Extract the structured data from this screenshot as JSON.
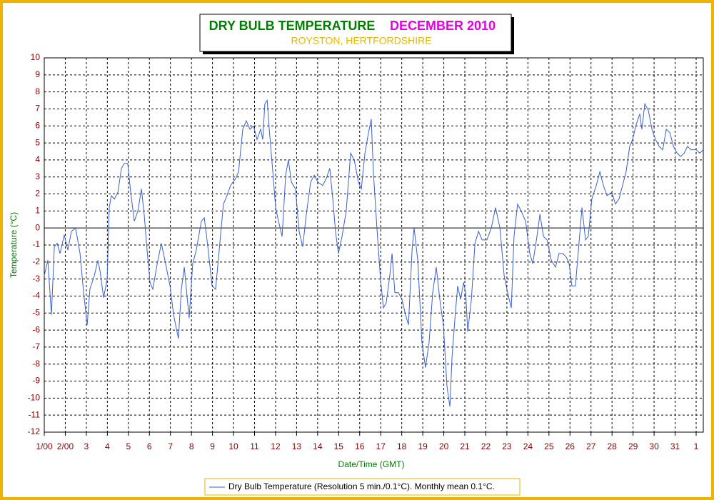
{
  "chart_data": {
    "type": "line",
    "title": "DRY BULB TEMPERATURE",
    "title_period": "DECEMBER 2010",
    "subtitle": "ROYSTON, HERTFORDSHIRE",
    "xlabel": "Date/Time (GMT)",
    "ylabel": "Temperature (°C)",
    "xlim": [
      1,
      32.34
    ],
    "ylim": [
      -12,
      10
    ],
    "xticks": [
      {
        "value": 1,
        "label": "1/00"
      },
      {
        "value": 2,
        "label": "2/00"
      },
      3,
      4,
      5,
      6,
      7,
      8,
      9,
      10,
      11,
      12,
      13,
      14,
      15,
      16,
      17,
      18,
      19,
      20,
      21,
      22,
      23,
      24,
      25,
      26,
      27,
      28,
      29,
      30,
      31,
      {
        "value": 32,
        "label": "1"
      }
    ],
    "yticks": [
      -12,
      -11,
      -10,
      -9,
      -8,
      -7,
      -6,
      -5,
      -4,
      -3,
      -2,
      -1,
      0,
      1,
      2,
      3,
      4,
      5,
      6,
      7,
      8,
      9,
      10
    ],
    "grid": true,
    "x": [
      1.0,
      1.17,
      1.34,
      1.48,
      1.61,
      1.75,
      1.95,
      2.12,
      2.29,
      2.49,
      2.7,
      2.87,
      3.04,
      3.17,
      3.38,
      3.55,
      3.65,
      3.82,
      3.99,
      4.09,
      4.19,
      4.33,
      4.5,
      4.67,
      4.8,
      4.97,
      5.11,
      5.28,
      5.45,
      5.62,
      5.75,
      5.89,
      6.03,
      6.16,
      6.37,
      6.57,
      6.77,
      6.98,
      7.15,
      7.38,
      7.52,
      7.66,
      7.89,
      8.06,
      8.23,
      8.47,
      8.61,
      8.78,
      8.98,
      9.15,
      9.32,
      9.52,
      9.69,
      9.86,
      10.1,
      10.24,
      10.44,
      10.61,
      10.78,
      10.95,
      11.12,
      11.29,
      11.39,
      11.49,
      11.6,
      11.7,
      11.87,
      12.0,
      12.14,
      12.31,
      12.48,
      12.61,
      12.75,
      12.95,
      13.12,
      13.29,
      13.46,
      13.67,
      13.84,
      14.01,
      14.24,
      14.41,
      14.58,
      14.72,
      14.85,
      14.99,
      15.16,
      15.36,
      15.57,
      15.74,
      15.94,
      16.08,
      16.25,
      16.42,
      16.55,
      16.65,
      16.82,
      16.99,
      17.13,
      17.26,
      17.43,
      17.54,
      17.67,
      17.84,
      18.01,
      18.18,
      18.32,
      18.49,
      18.59,
      18.76,
      18.96,
      19.13,
      19.3,
      19.47,
      19.64,
      19.81,
      19.98,
      20.15,
      20.29,
      20.39,
      20.53,
      20.66,
      20.8,
      20.94,
      21.04,
      21.14,
      21.31,
      21.48,
      21.65,
      21.82,
      22.05,
      22.26,
      22.46,
      22.67,
      22.87,
      23.07,
      23.21,
      23.34,
      23.51,
      23.68,
      23.89,
      24.09,
      24.23,
      24.43,
      24.57,
      24.74,
      24.91,
      25.11,
      25.31,
      25.48,
      25.65,
      25.82,
      25.96,
      26.09,
      26.26,
      26.4,
      26.57,
      26.74,
      26.87,
      27.04,
      27.25,
      27.42,
      27.59,
      27.76,
      27.99,
      28.16,
      28.33,
      28.5,
      28.67,
      28.84,
      28.98,
      29.15,
      29.32,
      29.42,
      29.56,
      29.73,
      29.9,
      30.07,
      30.24,
      30.41,
      30.58,
      30.75,
      30.92,
      31.09,
      31.26,
      31.43,
      31.59,
      31.76,
      32.0,
      32.17,
      32.34
    ],
    "series": [
      {
        "name": "Dry Bulb Temperature (Resolution 5 min./0.1°C). Monthly mean 0.1°C.",
        "color": "#3a5fd9",
        "values": [
          -2.8,
          -1.9,
          -5.1,
          -1.1,
          -0.9,
          -1.5,
          -0.4,
          -1.3,
          -0.2,
          0.0,
          -1.5,
          -3.8,
          -5.7,
          -3.6,
          -2.8,
          -1.9,
          -2.5,
          -4.1,
          -3.0,
          1.2,
          1.9,
          1.7,
          2.1,
          3.5,
          3.8,
          3.8,
          2.1,
          0.4,
          1.0,
          2.3,
          0.8,
          -1.3,
          -3.2,
          -3.6,
          -2.1,
          -0.9,
          -2.1,
          -3.4,
          -5.1,
          -6.5,
          -3.6,
          -2.3,
          -5.3,
          -2.1,
          -1.3,
          0.4,
          0.6,
          -1.1,
          -3.4,
          -3.6,
          -1.3,
          1.4,
          1.9,
          2.5,
          2.9,
          3.3,
          5.8,
          6.3,
          5.8,
          6.0,
          5.2,
          5.8,
          5.2,
          7.3,
          7.5,
          5.8,
          3.3,
          1.2,
          0.4,
          -0.5,
          3.1,
          4.0,
          2.7,
          2.3,
          -0.2,
          -1.1,
          0.8,
          2.7,
          3.1,
          2.7,
          2.5,
          2.9,
          3.5,
          1.7,
          -0.2,
          -1.5,
          -0.5,
          1.0,
          4.4,
          4.0,
          2.7,
          2.3,
          4.4,
          5.6,
          6.4,
          3.3,
          0.0,
          -3.0,
          -4.7,
          -4.4,
          -2.8,
          -1.5,
          -3.8,
          -3.8,
          -4.2,
          -5.1,
          -5.7,
          -1.3,
          0.0,
          -1.9,
          -6.7,
          -8.2,
          -6.7,
          -3.8,
          -2.3,
          -4.2,
          -5.7,
          -9.3,
          -10.5,
          -7.6,
          -5.3,
          -3.4,
          -4.2,
          -3.2,
          -3.8,
          -6.1,
          -4.2,
          -0.9,
          -0.2,
          -0.7,
          -0.7,
          0.0,
          1.2,
          0.0,
          -2.8,
          -4.0,
          -4.7,
          -0.5,
          1.4,
          1.0,
          0.4,
          -1.5,
          -2.1,
          -0.5,
          0.8,
          -0.5,
          -0.7,
          -1.9,
          -2.3,
          -1.5,
          -1.5,
          -1.7,
          -2.1,
          -3.4,
          -3.4,
          -1.3,
          1.2,
          -0.7,
          -0.5,
          1.7,
          2.5,
          3.3,
          2.5,
          1.9,
          2.1,
          1.4,
          1.7,
          2.5,
          3.3,
          4.8,
          5.2,
          6.1,
          6.7,
          5.8,
          7.3,
          6.9,
          5.8,
          5.2,
          4.8,
          4.6,
          5.8,
          5.6,
          4.8,
          4.4,
          4.2,
          4.4,
          4.8,
          4.6,
          4.6,
          4.4,
          4.6
        ]
      }
    ]
  }
}
